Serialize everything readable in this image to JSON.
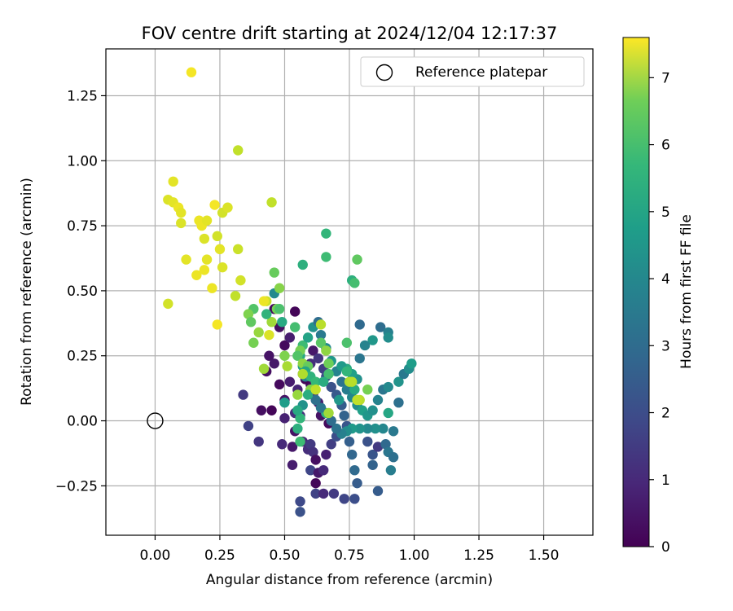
{
  "chart_data": {
    "type": "scatter",
    "title": "FOV centre drift starting at 2024/12/04 12:17:37",
    "xlabel": "Angular distance from reference (arcmin)",
    "ylabel": "Rotation from reference (arcmin)",
    "xlim": [
      -0.19,
      1.69
    ],
    "ylim": [
      -0.44,
      1.43
    ],
    "xticks": [
      "0.00",
      "0.25",
      "0.50",
      "0.75",
      "1.00",
      "1.25",
      "1.50"
    ],
    "yticks": [
      "−0.25",
      "0.00",
      "0.25",
      "0.50",
      "0.75",
      "1.00",
      "1.25"
    ],
    "grid": true,
    "legend": {
      "placement": "top-right",
      "entries": [
        "Reference platepar"
      ]
    },
    "reference_point": {
      "x": 0.0,
      "y": 0.0
    },
    "colorbar": {
      "label": "Hours from first FF file",
      "colormap": "viridis",
      "range": [
        0,
        7.6
      ],
      "ticks": [
        "0",
        "1",
        "2",
        "3",
        "4",
        "5",
        "6",
        "7"
      ]
    },
    "points": [
      {
        "x": 0.54,
        "y": 0.42,
        "h": 0.1
      },
      {
        "x": 0.46,
        "y": 0.43,
        "h": 0.2
      },
      {
        "x": 0.48,
        "y": 0.36,
        "h": 0.3
      },
      {
        "x": 0.5,
        "y": 0.29,
        "h": 0.2
      },
      {
        "x": 0.52,
        "y": 0.32,
        "h": 0.6
      },
      {
        "x": 0.44,
        "y": 0.25,
        "h": 0.4
      },
      {
        "x": 0.46,
        "y": 0.22,
        "h": 0.5
      },
      {
        "x": 0.43,
        "y": 0.19,
        "h": 0.3
      },
      {
        "x": 0.48,
        "y": 0.14,
        "h": 0.2
      },
      {
        "x": 0.52,
        "y": 0.15,
        "h": 0.6
      },
      {
        "x": 0.55,
        "y": 0.12,
        "h": 0.8
      },
      {
        "x": 0.5,
        "y": 0.08,
        "h": 0.4
      },
      {
        "x": 0.41,
        "y": 0.04,
        "h": 0.3
      },
      {
        "x": 0.45,
        "y": 0.04,
        "h": 0.1
      },
      {
        "x": 0.5,
        "y": 0.01,
        "h": 0.7
      },
      {
        "x": 0.54,
        "y": 0.03,
        "h": 1.0
      },
      {
        "x": 0.56,
        "y": 0.02,
        "h": 1.1
      },
      {
        "x": 0.34,
        "y": 0.1,
        "h": 1.3
      },
      {
        "x": 0.36,
        "y": -0.02,
        "h": 1.5
      },
      {
        "x": 0.4,
        "y": -0.08,
        "h": 1.2
      },
      {
        "x": 0.49,
        "y": -0.09,
        "h": 0.9
      },
      {
        "x": 0.53,
        "y": -0.1,
        "h": 0.5
      },
      {
        "x": 0.53,
        "y": -0.17,
        "h": 0.6
      },
      {
        "x": 0.54,
        "y": -0.04,
        "h": 0.4
      },
      {
        "x": 0.57,
        "y": -0.08,
        "h": 0.8
      },
      {
        "x": 0.59,
        "y": -0.11,
        "h": 1.0
      },
      {
        "x": 0.6,
        "y": -0.09,
        "h": 1.3
      },
      {
        "x": 0.61,
        "y": -0.12,
        "h": 1.1
      },
      {
        "x": 0.62,
        "y": -0.15,
        "h": 0.3
      },
      {
        "x": 0.6,
        "y": -0.19,
        "h": 1.6
      },
      {
        "x": 0.62,
        "y": -0.24,
        "h": 0.1
      },
      {
        "x": 0.63,
        "y": -0.2,
        "h": 0.5
      },
      {
        "x": 0.65,
        "y": -0.19,
        "h": 0.9
      },
      {
        "x": 0.66,
        "y": -0.13,
        "h": 0.7
      },
      {
        "x": 0.68,
        "y": -0.09,
        "h": 1.4
      },
      {
        "x": 0.7,
        "y": -0.06,
        "h": 1.8
      },
      {
        "x": 0.67,
        "y": -0.01,
        "h": 0.2
      },
      {
        "x": 0.64,
        "y": 0.02,
        "h": 0.4
      },
      {
        "x": 0.63,
        "y": 0.07,
        "h": 0.6
      },
      {
        "x": 0.61,
        "y": 0.1,
        "h": 0.9
      },
      {
        "x": 0.6,
        "y": 0.14,
        "h": 0.3
      },
      {
        "x": 0.58,
        "y": 0.16,
        "h": 0.1
      },
      {
        "x": 0.57,
        "y": 0.18,
        "h": 0.7
      },
      {
        "x": 0.6,
        "y": 0.22,
        "h": 1.0
      },
      {
        "x": 0.61,
        "y": 0.27,
        "h": 0.5
      },
      {
        "x": 0.63,
        "y": 0.24,
        "h": 1.2
      },
      {
        "x": 0.65,
        "y": 0.2,
        "h": 1.4
      },
      {
        "x": 0.66,
        "y": 0.17,
        "h": 1.7
      },
      {
        "x": 0.68,
        "y": 0.13,
        "h": 1.9
      },
      {
        "x": 0.7,
        "y": 0.1,
        "h": 2.1
      },
      {
        "x": 0.72,
        "y": 0.06,
        "h": 2.2
      },
      {
        "x": 0.73,
        "y": 0.02,
        "h": 2.4
      },
      {
        "x": 0.74,
        "y": -0.02,
        "h": 2.0
      },
      {
        "x": 0.75,
        "y": -0.08,
        "h": 2.3
      },
      {
        "x": 0.76,
        "y": -0.13,
        "h": 2.5
      },
      {
        "x": 0.77,
        "y": -0.19,
        "h": 2.6
      },
      {
        "x": 0.78,
        "y": -0.24,
        "h": 2.2
      },
      {
        "x": 0.77,
        "y": -0.3,
        "h": 1.8
      },
      {
        "x": 0.73,
        "y": -0.3,
        "h": 1.6
      },
      {
        "x": 0.69,
        "y": -0.28,
        "h": 1.3
      },
      {
        "x": 0.62,
        "y": -0.28,
        "h": 1.5
      },
      {
        "x": 0.65,
        "y": -0.28,
        "h": 0.9
      },
      {
        "x": 0.56,
        "y": -0.31,
        "h": 1.7
      },
      {
        "x": 0.56,
        "y": -0.35,
        "h": 1.9
      },
      {
        "x": 0.84,
        "y": -0.13,
        "h": 2.0
      },
      {
        "x": 0.82,
        "y": -0.08,
        "h": 1.9
      },
      {
        "x": 0.84,
        "y": -0.17,
        "h": 2.4
      },
      {
        "x": 0.86,
        "y": -0.27,
        "h": 2.2
      },
      {
        "x": 0.86,
        "y": -0.1,
        "h": 1.3
      },
      {
        "x": 0.89,
        "y": -0.09,
        "h": 2.6
      },
      {
        "x": 0.9,
        "y": -0.12,
        "h": 3.0
      },
      {
        "x": 0.92,
        "y": -0.14,
        "h": 2.8
      },
      {
        "x": 0.91,
        "y": -0.19,
        "h": 3.2
      },
      {
        "x": 0.92,
        "y": -0.04,
        "h": 3.1
      },
      {
        "x": 0.88,
        "y": -0.03,
        "h": 3.5
      },
      {
        "x": 0.85,
        "y": -0.03,
        "h": 3.8
      },
      {
        "x": 0.82,
        "y": -0.03,
        "h": 3.6
      },
      {
        "x": 0.79,
        "y": -0.03,
        "h": 3.9
      },
      {
        "x": 0.76,
        "y": -0.03,
        "h": 4.1
      },
      {
        "x": 0.74,
        "y": -0.04,
        "h": 3.7
      },
      {
        "x": 0.72,
        "y": -0.05,
        "h": 3.3
      },
      {
        "x": 0.7,
        "y": -0.03,
        "h": 2.9
      },
      {
        "x": 0.68,
        "y": 0.0,
        "h": 2.7
      },
      {
        "x": 0.66,
        "y": 0.03,
        "h": 4.9
      },
      {
        "x": 0.64,
        "y": 0.05,
        "h": 3.0
      },
      {
        "x": 0.62,
        "y": 0.08,
        "h": 2.8
      },
      {
        "x": 0.6,
        "y": 0.12,
        "h": 2.5
      },
      {
        "x": 0.58,
        "y": 0.17,
        "h": 3.4
      },
      {
        "x": 0.57,
        "y": 0.21,
        "h": 4.2
      },
      {
        "x": 0.56,
        "y": 0.25,
        "h": 4.6
      },
      {
        "x": 0.57,
        "y": 0.29,
        "h": 5.2
      },
      {
        "x": 0.59,
        "y": 0.32,
        "h": 4.4
      },
      {
        "x": 0.61,
        "y": 0.36,
        "h": 3.9
      },
      {
        "x": 0.63,
        "y": 0.38,
        "h": 2.7
      },
      {
        "x": 0.64,
        "y": 0.33,
        "h": 3.1
      },
      {
        "x": 0.66,
        "y": 0.28,
        "h": 3.6
      },
      {
        "x": 0.68,
        "y": 0.23,
        "h": 4.0
      },
      {
        "x": 0.7,
        "y": 0.19,
        "h": 3.4
      },
      {
        "x": 0.72,
        "y": 0.15,
        "h": 2.9
      },
      {
        "x": 0.74,
        "y": 0.12,
        "h": 3.2
      },
      {
        "x": 0.76,
        "y": 0.09,
        "h": 3.5
      },
      {
        "x": 0.78,
        "y": 0.06,
        "h": 3.7
      },
      {
        "x": 0.8,
        "y": 0.04,
        "h": 4.3
      },
      {
        "x": 0.82,
        "y": 0.02,
        "h": 4.0
      },
      {
        "x": 0.84,
        "y": 0.04,
        "h": 3.8
      },
      {
        "x": 0.86,
        "y": 0.08,
        "h": 3.4
      },
      {
        "x": 0.88,
        "y": 0.12,
        "h": 3.0
      },
      {
        "x": 0.9,
        "y": 0.13,
        "h": 3.6
      },
      {
        "x": 0.94,
        "y": 0.15,
        "h": 3.9
      },
      {
        "x": 0.94,
        "y": 0.07,
        "h": 2.8
      },
      {
        "x": 0.96,
        "y": 0.18,
        "h": 3.1
      },
      {
        "x": 0.98,
        "y": 0.2,
        "h": 3.7
      },
      {
        "x": 0.99,
        "y": 0.22,
        "h": 4.2
      },
      {
        "x": 0.9,
        "y": 0.03,
        "h": 4.5
      },
      {
        "x": 0.87,
        "y": 0.36,
        "h": 2.7
      },
      {
        "x": 0.9,
        "y": 0.34,
        "h": 3.3
      },
      {
        "x": 0.9,
        "y": 0.32,
        "h": 3.7
      },
      {
        "x": 0.84,
        "y": 0.31,
        "h": 4.0
      },
      {
        "x": 0.81,
        "y": 0.29,
        "h": 3.4
      },
      {
        "x": 0.79,
        "y": 0.24,
        "h": 3.0
      },
      {
        "x": 0.79,
        "y": 0.37,
        "h": 2.6
      },
      {
        "x": 0.78,
        "y": 0.16,
        "h": 3.8
      },
      {
        "x": 0.76,
        "y": 0.18,
        "h": 4.3
      },
      {
        "x": 0.74,
        "y": 0.2,
        "h": 4.6
      },
      {
        "x": 0.72,
        "y": 0.21,
        "h": 4.1
      },
      {
        "x": 0.76,
        "y": 0.54,
        "h": 4.8
      },
      {
        "x": 0.77,
        "y": 0.53,
        "h": 5.3
      },
      {
        "x": 0.78,
        "y": 0.62,
        "h": 5.7
      },
      {
        "x": 0.66,
        "y": 0.72,
        "h": 5.0
      },
      {
        "x": 0.66,
        "y": 0.63,
        "h": 5.2
      },
      {
        "x": 0.57,
        "y": 0.6,
        "h": 4.8
      },
      {
        "x": 0.46,
        "y": 0.49,
        "h": 3.6
      },
      {
        "x": 0.46,
        "y": 0.57,
        "h": 5.8
      },
      {
        "x": 0.48,
        "y": 0.51,
        "h": 6.2
      },
      {
        "x": 0.47,
        "y": 0.43,
        "h": 6.0
      },
      {
        "x": 0.48,
        "y": 0.43,
        "h": 5.4
      },
      {
        "x": 0.49,
        "y": 0.38,
        "h": 4.6
      },
      {
        "x": 0.45,
        "y": 0.38,
        "h": 6.5
      },
      {
        "x": 0.43,
        "y": 0.41,
        "h": 4.9
      },
      {
        "x": 0.38,
        "y": 0.43,
        "h": 5.5
      },
      {
        "x": 0.36,
        "y": 0.41,
        "h": 6.1
      },
      {
        "x": 0.37,
        "y": 0.38,
        "h": 5.7
      },
      {
        "x": 0.4,
        "y": 0.34,
        "h": 6.4
      },
      {
        "x": 0.38,
        "y": 0.3,
        "h": 6.0
      },
      {
        "x": 0.43,
        "y": 0.46,
        "h": 7.0
      },
      {
        "x": 0.44,
        "y": 0.33,
        "h": 7.2
      },
      {
        "x": 0.54,
        "y": 0.36,
        "h": 5.3
      },
      {
        "x": 0.56,
        "y": 0.27,
        "h": 6.0
      },
      {
        "x": 0.55,
        "y": 0.25,
        "h": 5.5
      },
      {
        "x": 0.57,
        "y": 0.22,
        "h": 6.3
      },
      {
        "x": 0.59,
        "y": 0.21,
        "h": 5.8
      },
      {
        "x": 0.58,
        "y": 0.19,
        "h": 4.5
      },
      {
        "x": 0.6,
        "y": 0.17,
        "h": 4.9
      },
      {
        "x": 0.62,
        "y": 0.15,
        "h": 5.1
      },
      {
        "x": 0.6,
        "y": 0.12,
        "h": 6.2
      },
      {
        "x": 0.59,
        "y": 0.1,
        "h": 4.7
      },
      {
        "x": 0.57,
        "y": 0.06,
        "h": 3.9
      },
      {
        "x": 0.55,
        "y": 0.1,
        "h": 6.4
      },
      {
        "x": 0.51,
        "y": 0.21,
        "h": 6.6
      },
      {
        "x": 0.5,
        "y": 0.25,
        "h": 6.1
      },
      {
        "x": 0.42,
        "y": 0.2,
        "h": 6.5
      },
      {
        "x": 0.64,
        "y": 0.37,
        "h": 6.8
      },
      {
        "x": 0.64,
        "y": 0.3,
        "h": 5.6
      },
      {
        "x": 0.66,
        "y": 0.27,
        "h": 6.3
      },
      {
        "x": 0.67,
        "y": 0.22,
        "h": 5.9
      },
      {
        "x": 0.67,
        "y": 0.18,
        "h": 5.3
      },
      {
        "x": 0.65,
        "y": 0.15,
        "h": 4.7
      },
      {
        "x": 0.67,
        "y": 0.03,
        "h": 6.5
      },
      {
        "x": 0.74,
        "y": 0.3,
        "h": 5.4
      },
      {
        "x": 0.75,
        "y": 0.15,
        "h": 6.7
      },
      {
        "x": 0.74,
        "y": 0.19,
        "h": 5.0
      },
      {
        "x": 0.77,
        "y": 0.12,
        "h": 4.6
      },
      {
        "x": 0.79,
        "y": 0.08,
        "h": 6.8
      },
      {
        "x": 0.82,
        "y": 0.12,
        "h": 6.0
      },
      {
        "x": 0.55,
        "y": -0.03,
        "h": 4.8
      },
      {
        "x": 0.56,
        "y": -0.08,
        "h": 5.2
      },
      {
        "x": 0.56,
        "y": 0.01,
        "h": 5.0
      },
      {
        "x": 0.55,
        "y": 0.04,
        "h": 4.6
      },
      {
        "x": 0.5,
        "y": 0.07,
        "h": 4.2
      },
      {
        "x": 0.71,
        "y": 0.08,
        "h": 4.0
      },
      {
        "x": 0.05,
        "y": 0.85,
        "h": 7.2
      },
      {
        "x": 0.07,
        "y": 0.84,
        "h": 7.3
      },
      {
        "x": 0.09,
        "y": 0.82,
        "h": 7.4
      },
      {
        "x": 0.1,
        "y": 0.8,
        "h": 7.3
      },
      {
        "x": 0.07,
        "y": 0.92,
        "h": 7.3
      },
      {
        "x": 0.1,
        "y": 0.76,
        "h": 7.2
      },
      {
        "x": 0.14,
        "y": 1.34,
        "h": 7.5
      },
      {
        "x": 0.17,
        "y": 0.77,
        "h": 7.4
      },
      {
        "x": 0.18,
        "y": 0.75,
        "h": 7.4
      },
      {
        "x": 0.19,
        "y": 0.7,
        "h": 7.2
      },
      {
        "x": 0.2,
        "y": 0.77,
        "h": 7.3
      },
      {
        "x": 0.12,
        "y": 0.62,
        "h": 7.3
      },
      {
        "x": 0.2,
        "y": 0.62,
        "h": 7.3
      },
      {
        "x": 0.19,
        "y": 0.58,
        "h": 7.4
      },
      {
        "x": 0.16,
        "y": 0.56,
        "h": 7.4
      },
      {
        "x": 0.23,
        "y": 0.83,
        "h": 7.5
      },
      {
        "x": 0.26,
        "y": 0.8,
        "h": 7.1
      },
      {
        "x": 0.24,
        "y": 0.71,
        "h": 7.1
      },
      {
        "x": 0.25,
        "y": 0.66,
        "h": 7.3
      },
      {
        "x": 0.26,
        "y": 0.59,
        "h": 7.2
      },
      {
        "x": 0.28,
        "y": 0.82,
        "h": 7.2
      },
      {
        "x": 0.22,
        "y": 0.51,
        "h": 7.4
      },
      {
        "x": 0.05,
        "y": 0.45,
        "h": 7.1
      },
      {
        "x": 0.24,
        "y": 0.37,
        "h": 7.5
      },
      {
        "x": 0.32,
        "y": 1.04,
        "h": 6.9
      },
      {
        "x": 0.32,
        "y": 0.66,
        "h": 7.0
      },
      {
        "x": 0.33,
        "y": 0.54,
        "h": 7.1
      },
      {
        "x": 0.31,
        "y": 0.48,
        "h": 6.9
      },
      {
        "x": 0.45,
        "y": 0.84,
        "h": 6.9
      },
      {
        "x": 0.42,
        "y": 0.46,
        "h": 7.4
      },
      {
        "x": 0.78,
        "y": 0.08,
        "h": 6.9
      },
      {
        "x": 0.76,
        "y": 0.15,
        "h": 6.8
      },
      {
        "x": 0.62,
        "y": 0.12,
        "h": 6.9
      },
      {
        "x": 0.57,
        "y": 0.18,
        "h": 6.7
      }
    ]
  }
}
